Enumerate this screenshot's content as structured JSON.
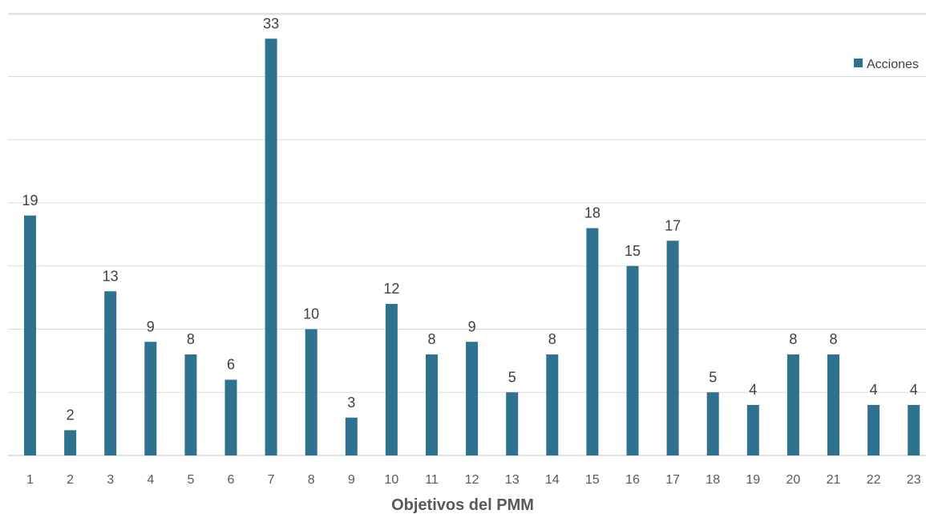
{
  "chart_data": {
    "type": "bar",
    "categories": [
      "1",
      "2",
      "3",
      "4",
      "5",
      "6",
      "7",
      "8",
      "9",
      "10",
      "11",
      "12",
      "13",
      "14",
      "15",
      "16",
      "17",
      "18",
      "19",
      "20",
      "21",
      "22",
      "23"
    ],
    "series": [
      {
        "name": "Acciones",
        "values": [
          19,
          2,
          13,
          9,
          8,
          6,
          33,
          10,
          3,
          12,
          8,
          9,
          5,
          8,
          18,
          15,
          17,
          5,
          4,
          8,
          8,
          4,
          4
        ]
      }
    ],
    "title": "",
    "xlabel": "Objetivos del PMM",
    "ylabel": "",
    "ylim": [
      0,
      35
    ],
    "grid": true,
    "legend_position": "top-right",
    "colors": {
      "bar": "#2e7290"
    }
  }
}
